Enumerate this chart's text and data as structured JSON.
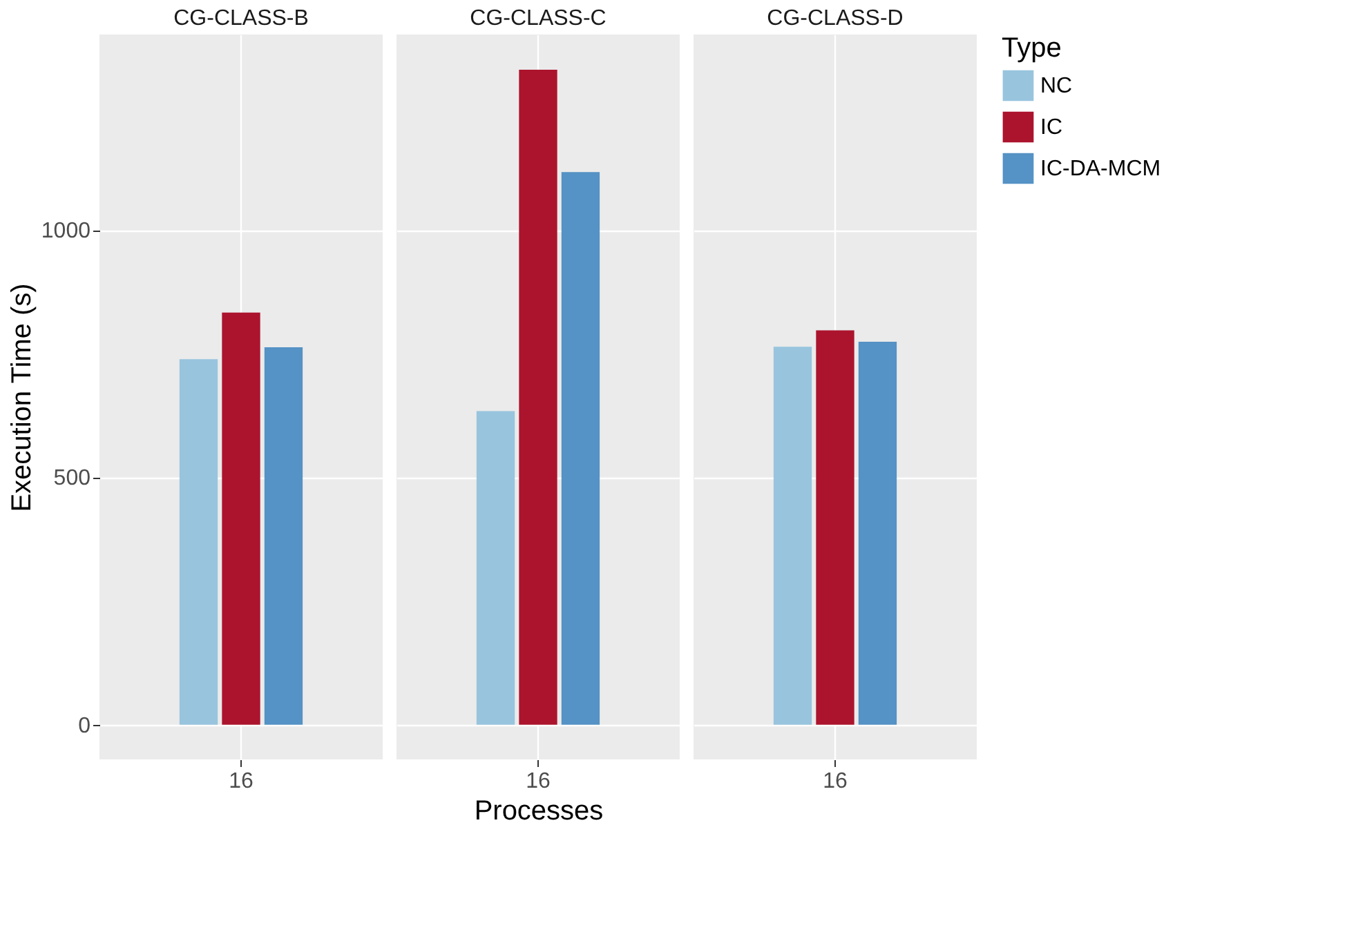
{
  "chart_data": [
    {
      "type": "bar",
      "title": "CG-CLASS-B",
      "ylabel": "Execution Time (s)",
      "categories": [
        "16"
      ],
      "ylim": [
        -70,
        1395
      ],
      "yticks": [
        0,
        500,
        1000
      ],
      "grid": true,
      "legend": "right",
      "series": [
        {
          "name": "NC",
          "color": "#98c4de",
          "values": [
            739
          ]
        },
        {
          "name": "IC",
          "color": "#ac142d",
          "values": [
            833
          ]
        },
        {
          "name": "IC-DA-MCM",
          "color": "#5592c5",
          "values": [
            763
          ]
        }
      ]
    },
    {
      "type": "bar",
      "title": "CG-CLASS-C",
      "xlabel": "Processes",
      "categories": [
        "16"
      ],
      "ylim": [
        -70,
        1395
      ],
      "yticks": [
        0,
        500,
        1000
      ],
      "grid": true,
      "legend": "right",
      "tick_labels": "x",
      "series": [
        {
          "name": "NC",
          "color": "#98c4de",
          "values": [
            634
          ]
        },
        {
          "name": "IC",
          "color": "#ac142d",
          "values": [
            1324
          ]
        },
        {
          "name": "IC-DA-MCM",
          "color": "#5592c5",
          "values": [
            1117
          ]
        }
      ]
    },
    {
      "type": "bar",
      "title": "CG-CLASS-D",
      "legend_title": "Type",
      "categories": [
        "16"
      ],
      "ylim": [
        -70,
        1395
      ],
      "yticks": [
        0,
        500,
        1000
      ],
      "grid": true,
      "legend": "right",
      "tick_labels": "x",
      "series": [
        {
          "name": "NC",
          "color": "#98c4de",
          "values": [
            764
          ]
        },
        {
          "name": "IC",
          "color": "#ac142d",
          "values": [
            797
          ]
        },
        {
          "name": "IC-DA-MCM",
          "color": "#5592c5",
          "values": [
            774
          ]
        }
      ]
    }
  ]
}
